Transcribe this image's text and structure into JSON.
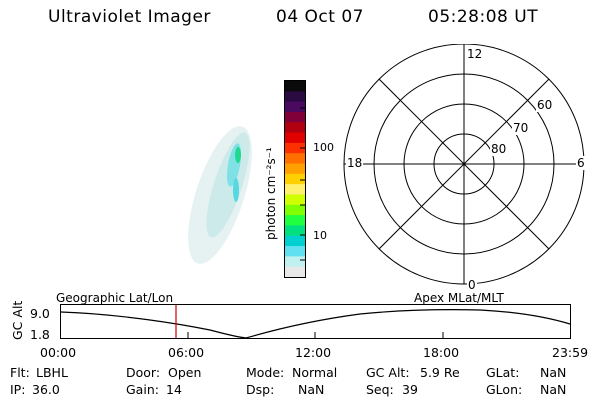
{
  "header": {
    "title": "Ultraviolet Imager",
    "date": "04 Oct 07",
    "time": "05:28:08 UT"
  },
  "colorbar": {
    "label": "photon cm⁻²s⁻¹",
    "ticks": [
      "100",
      "10"
    ],
    "colors": [
      "#0a0a0a",
      "#2a0a40",
      "#4a0a60",
      "#80003a",
      "#b00010",
      "#e00000",
      "#ff3000",
      "#ff7000",
      "#ffa000",
      "#ffd000",
      "#fff070",
      "#d0ff00",
      "#80ff00",
      "#20ff40",
      "#00e080",
      "#00d0d0",
      "#60e0f0",
      "#c0f0f0",
      "#e8e8e8"
    ]
  },
  "polar": {
    "mlt_labels": {
      "top": "12",
      "bottom": "0",
      "left": "18",
      "right": "6"
    },
    "lat_labels": [
      "60",
      "70",
      "80"
    ]
  },
  "timeline": {
    "ylabel": "GC Alt",
    "yticks": [
      "9.0",
      "1.8"
    ],
    "left_caption": "Geographic Lat/Lon",
    "right_caption": "Apex MLat/MLT",
    "xticks": [
      "00:00",
      "06:00",
      "12:00",
      "18:00",
      "23:59"
    ]
  },
  "info": {
    "row1": [
      {
        "key": "Flt:",
        "value": "LBHL"
      },
      {
        "key": "Door:",
        "value": "Open"
      },
      {
        "key": "Mode:",
        "value": "Normal"
      },
      {
        "key": "GC Alt:",
        "value": "5.9 Re"
      },
      {
        "key": "GLat:",
        "value": "NaN"
      }
    ],
    "row2": [
      {
        "key": "IP:",
        "value": "36.0"
      },
      {
        "key": "Gain:",
        "value": "14"
      },
      {
        "key": "Dsp:",
        "value": "NaN"
      },
      {
        "key": "Seq:",
        "value": "39"
      },
      {
        "key": "GLon:",
        "value": "NaN"
      }
    ]
  }
}
